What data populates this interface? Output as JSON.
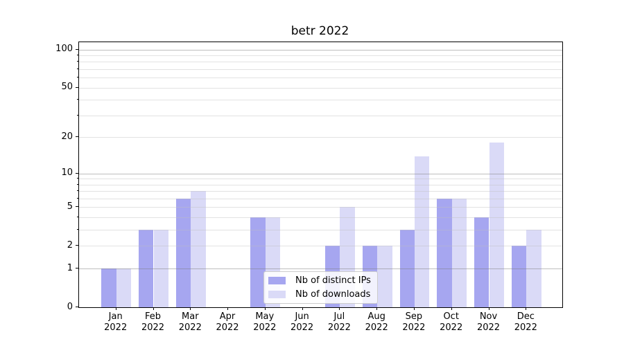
{
  "chart_data": {
    "type": "bar",
    "title": "betr 2022",
    "categories": [
      "Jan 2022",
      "Feb 2022",
      "Mar 2022",
      "Apr 2022",
      "May 2022",
      "Jun 2022",
      "Jul 2022",
      "Aug 2022",
      "Sep 2022",
      "Oct 2022",
      "Nov 2022",
      "Dec 2022"
    ],
    "series": [
      {
        "name": "Nb of distinct IPs",
        "color": "#a6a6f0",
        "values": [
          1,
          3,
          6,
          0,
          4,
          0,
          2,
          2,
          3,
          6,
          4,
          2
        ]
      },
      {
        "name": "Nb of downloads",
        "color": "#dadaf7",
        "values": [
          1,
          3,
          7,
          0,
          4,
          0,
          5,
          2,
          14,
          6,
          18,
          3
        ]
      }
    ],
    "xlabel": "",
    "ylabel": "",
    "yscale": "log1p",
    "ylim": [
      0,
      114
    ],
    "yticks": [
      0,
      1,
      2,
      5,
      10,
      20,
      50,
      100
    ],
    "major_gridlines": [
      1,
      10,
      100
    ],
    "minor_gridlines": [
      2,
      3,
      4,
      5,
      6,
      7,
      8,
      9,
      20,
      30,
      40,
      50,
      60,
      70,
      80,
      90
    ],
    "grid": true,
    "legend_position": "lower center"
  }
}
